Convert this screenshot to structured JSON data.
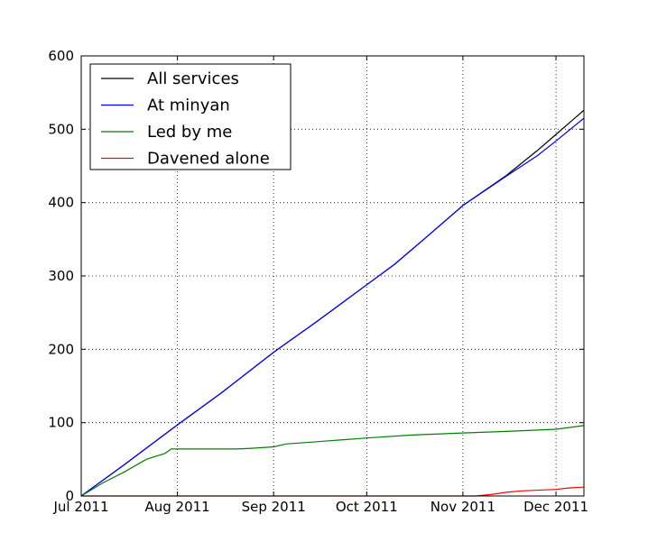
{
  "chart_data": {
    "type": "line",
    "title": "",
    "xlabel": "",
    "ylabel": "",
    "x_axis": {
      "type": "date",
      "range": [
        "2011-07-01",
        "2011-12-10"
      ],
      "ticks": [
        {
          "date": "2011-07-01",
          "label": "Jul 2011"
        },
        {
          "date": "2011-08-01",
          "label": "Aug 2011"
        },
        {
          "date": "2011-09-01",
          "label": "Sep 2011"
        },
        {
          "date": "2011-10-01",
          "label": "Oct 2011"
        },
        {
          "date": "2011-11-01",
          "label": "Nov 2011"
        },
        {
          "date": "2011-12-01",
          "label": "Dec 2011"
        }
      ]
    },
    "y_axis": {
      "range": [
        0,
        600
      ],
      "ticks": [
        0,
        100,
        200,
        300,
        400,
        500,
        600
      ]
    },
    "grid": true,
    "legend": "top-left",
    "series": [
      {
        "name": "All services",
        "color": "#000000",
        "points": [
          [
            "2011-07-01",
            0
          ],
          [
            "2011-07-15",
            43
          ],
          [
            "2011-08-01",
            97
          ],
          [
            "2011-08-15",
            140
          ],
          [
            "2011-09-01",
            196
          ],
          [
            "2011-09-15",
            238
          ],
          [
            "2011-10-01",
            288
          ],
          [
            "2011-10-10",
            316
          ],
          [
            "2011-10-20",
            352
          ],
          [
            "2011-11-01",
            396
          ],
          [
            "2011-11-15",
            437
          ],
          [
            "2011-11-25",
            471
          ],
          [
            "2011-12-01",
            493
          ],
          [
            "2011-12-10",
            526
          ]
        ]
      },
      {
        "name": "At minyan",
        "color": "#0000ff",
        "points": [
          [
            "2011-07-01",
            0
          ],
          [
            "2011-07-15",
            43
          ],
          [
            "2011-08-01",
            97
          ],
          [
            "2011-08-15",
            140
          ],
          [
            "2011-09-01",
            196
          ],
          [
            "2011-09-15",
            238
          ],
          [
            "2011-10-01",
            288
          ],
          [
            "2011-10-10",
            316
          ],
          [
            "2011-10-20",
            352
          ],
          [
            "2011-11-01",
            396
          ],
          [
            "2011-11-15",
            436
          ],
          [
            "2011-11-25",
            464
          ],
          [
            "2011-12-01",
            484
          ],
          [
            "2011-12-10",
            515
          ]
        ]
      },
      {
        "name": "Led by me",
        "color": "#008000",
        "points": [
          [
            "2011-07-01",
            0
          ],
          [
            "2011-07-08",
            18
          ],
          [
            "2011-07-15",
            33
          ],
          [
            "2011-07-22",
            50
          ],
          [
            "2011-07-28",
            58
          ],
          [
            "2011-07-30",
            64
          ],
          [
            "2011-08-10",
            64
          ],
          [
            "2011-08-20",
            64
          ],
          [
            "2011-08-25",
            65
          ],
          [
            "2011-09-01",
            67
          ],
          [
            "2011-09-05",
            71
          ],
          [
            "2011-09-15",
            74
          ],
          [
            "2011-10-01",
            79
          ],
          [
            "2011-10-15",
            83
          ],
          [
            "2011-11-01",
            86
          ],
          [
            "2011-11-15",
            88
          ],
          [
            "2011-12-01",
            91
          ],
          [
            "2011-12-10",
            96
          ]
        ]
      },
      {
        "name": "Davened alone",
        "color": "#ff0000",
        "points": [
          [
            "2011-07-01",
            0
          ],
          [
            "2011-11-05",
            0
          ],
          [
            "2011-11-10",
            2
          ],
          [
            "2011-11-15",
            5
          ],
          [
            "2011-11-20",
            7
          ],
          [
            "2011-12-01",
            9
          ],
          [
            "2011-12-05",
            11
          ],
          [
            "2011-12-10",
            12
          ]
        ]
      }
    ]
  }
}
